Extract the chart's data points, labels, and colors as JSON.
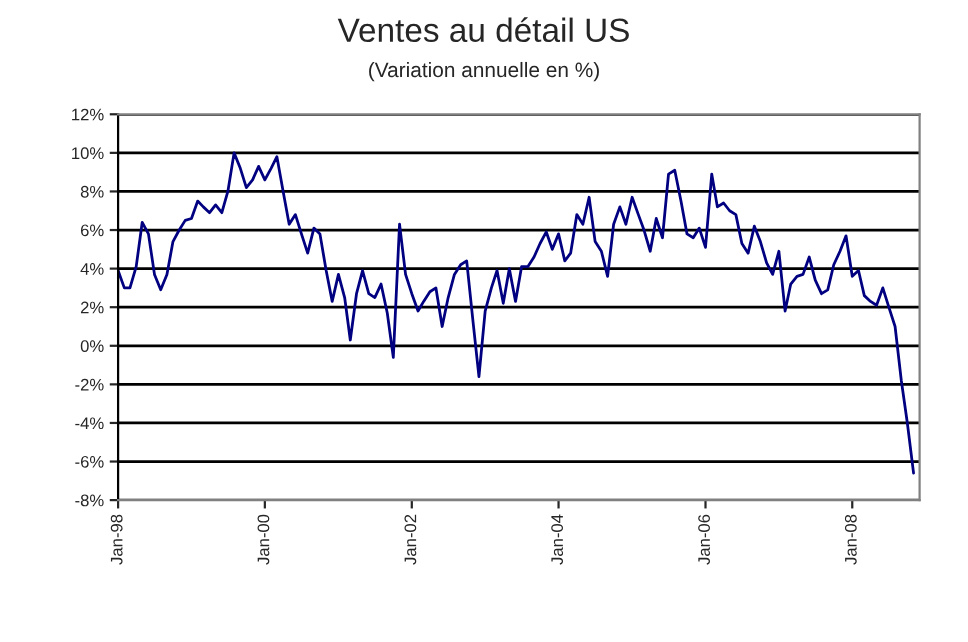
{
  "chart_data": {
    "type": "line",
    "title": "Ventes au détail US",
    "subtitle": "(Variation annuelle en %)",
    "x": [
      "1998-01",
      "1998-02",
      "1998-03",
      "1998-04",
      "1998-05",
      "1998-06",
      "1998-07",
      "1998-08",
      "1998-09",
      "1998-10",
      "1998-11",
      "1998-12",
      "1999-01",
      "1999-02",
      "1999-03",
      "1999-04",
      "1999-05",
      "1999-06",
      "1999-07",
      "1999-08",
      "1999-09",
      "1999-10",
      "1999-11",
      "1999-12",
      "2000-01",
      "2000-02",
      "2000-03",
      "2000-04",
      "2000-05",
      "2000-06",
      "2000-07",
      "2000-08",
      "2000-09",
      "2000-10",
      "2000-11",
      "2000-12",
      "2001-01",
      "2001-02",
      "2001-03",
      "2001-04",
      "2001-05",
      "2001-06",
      "2001-07",
      "2001-08",
      "2001-09",
      "2001-10",
      "2001-11",
      "2001-12",
      "2002-01",
      "2002-02",
      "2002-03",
      "2002-04",
      "2002-05",
      "2002-06",
      "2002-07",
      "2002-08",
      "2002-09",
      "2002-10",
      "2002-11",
      "2002-12",
      "2003-01",
      "2003-02",
      "2003-03",
      "2003-04",
      "2003-05",
      "2003-06",
      "2003-07",
      "2003-08",
      "2003-09",
      "2003-10",
      "2003-11",
      "2003-12",
      "2004-01",
      "2004-02",
      "2004-03",
      "2004-04",
      "2004-05",
      "2004-06",
      "2004-07",
      "2004-08",
      "2004-09",
      "2004-10",
      "2004-11",
      "2004-12",
      "2005-01",
      "2005-02",
      "2005-03",
      "2005-04",
      "2005-05",
      "2005-06",
      "2005-07",
      "2005-08",
      "2005-09",
      "2005-10",
      "2005-11",
      "2005-12",
      "2006-01",
      "2006-02",
      "2006-03",
      "2006-04",
      "2006-05",
      "2006-06",
      "2006-07",
      "2006-08",
      "2006-09",
      "2006-10",
      "2006-11",
      "2006-12",
      "2007-01",
      "2007-02",
      "2007-03",
      "2007-04",
      "2007-05",
      "2007-06",
      "2007-07",
      "2007-08",
      "2007-09",
      "2007-10",
      "2007-11",
      "2007-12",
      "2008-01",
      "2008-02",
      "2008-03",
      "2008-04",
      "2008-05",
      "2008-06",
      "2008-07",
      "2008-08",
      "2008-09",
      "2008-10",
      "2008-11"
    ],
    "series": [
      {
        "color": "#000080",
        "values": [
          3.9,
          3.0,
          3.0,
          4.1,
          6.4,
          5.8,
          3.7,
          2.9,
          3.7,
          5.4,
          6.0,
          6.5,
          6.6,
          7.5,
          7.2,
          6.9,
          7.3,
          6.9,
          8.0,
          10.0,
          9.2,
          8.2,
          8.6,
          9.3,
          8.6,
          9.2,
          9.8,
          8.0,
          6.3,
          6.8,
          5.8,
          4.8,
          6.1,
          5.8,
          3.9,
          2.3,
          3.7,
          2.5,
          0.3,
          2.7,
          3.9,
          2.7,
          2.5,
          3.2,
          1.7,
          -0.6,
          6.3,
          3.7,
          2.7,
          1.8,
          2.3,
          2.8,
          3.0,
          1.0,
          2.5,
          3.7,
          4.2,
          4.4,
          1.3,
          -1.6,
          1.8,
          3.0,
          3.9,
          2.2,
          4.0,
          2.3,
          4.1,
          4.1,
          4.6,
          5.3,
          5.9,
          5.0,
          5.8,
          4.4,
          4.8,
          6.8,
          6.3,
          7.7,
          5.4,
          4.9,
          3.6,
          6.3,
          7.2,
          6.3,
          7.7,
          6.8,
          6.0,
          4.9,
          6.6,
          5.6,
          8.9,
          9.1,
          7.5,
          5.8,
          5.6,
          6.1,
          5.1,
          8.9,
          7.2,
          7.4,
          7.0,
          6.8,
          5.3,
          4.8,
          6.2,
          5.4,
          4.3,
          3.7,
          4.9,
          1.8,
          3.2,
          3.6,
          3.7,
          4.6,
          3.4,
          2.7,
          2.9,
          4.2,
          4.9,
          5.7,
          3.6,
          3.9,
          2.6,
          2.3,
          2.1,
          3.0,
          2.0,
          1.0,
          -1.8,
          -4.0,
          -6.6
        ]
      }
    ],
    "xlim": [
      "1998-01",
      "2008-12"
    ],
    "xticks": [
      {
        "value": "1998-01",
        "label": "Jan-98"
      },
      {
        "value": "2000-01",
        "label": "Jan-00"
      },
      {
        "value": "2002-01",
        "label": "Jan-02"
      },
      {
        "value": "2004-01",
        "label": "Jan-04"
      },
      {
        "value": "2006-01",
        "label": "Jan-06"
      },
      {
        "value": "2008-01",
        "label": "Jan-08"
      }
    ],
    "ylim": [
      -8,
      12
    ],
    "yticks": [
      {
        "value": -8,
        "label": "-8%"
      },
      {
        "value": -6,
        "label": "-6%"
      },
      {
        "value": -4,
        "label": "-4%"
      },
      {
        "value": -2,
        "label": "-2%"
      },
      {
        "value": 0,
        "label": "0%"
      },
      {
        "value": 2,
        "label": "2%"
      },
      {
        "value": 4,
        "label": "4%"
      },
      {
        "value": 6,
        "label": "6%"
      },
      {
        "value": 8,
        "label": "8%"
      },
      {
        "value": 10,
        "label": "10%"
      },
      {
        "value": 12,
        "label": "12%"
      }
    ],
    "grid": "y",
    "marker": "none",
    "line_style": "solid",
    "legend": false
  }
}
